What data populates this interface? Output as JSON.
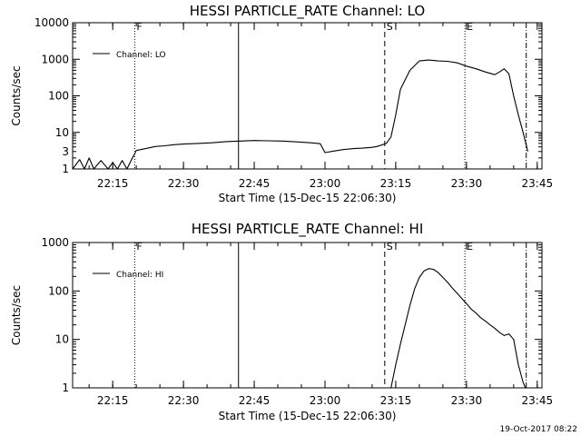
{
  "footer": {
    "date_stamp": "19-Oct-2017 08:22"
  },
  "chart_data": [
    {
      "type": "line",
      "title": "HESSI PARTICLE_RATE Channel: LO",
      "xlabel": "Start Time (15-Dec-15 22:06:30)",
      "ylabel": "Counts/sec",
      "yscale": "log",
      "ylim": [
        1,
        10000
      ],
      "xlim": [
        "22:06:30",
        "23:46:00"
      ],
      "xticks": [
        "22:15",
        "22:30",
        "22:45",
        "23:00",
        "23:15",
        "23:30",
        "23:45"
      ],
      "yticks": [
        "1",
        "10",
        "100",
        "1000",
        "10000"
      ],
      "y_minor_ticks": [
        3,
        30,
        300,
        3000
      ],
      "y_minor_labels": [
        "3",
        "",
        "",
        ""
      ],
      "legend": {
        "position": "top-left",
        "label": "Channel: LO"
      },
      "event_markers": [
        {
          "label": "F",
          "time": "22:19:40",
          "style": "dotted"
        },
        {
          "label": "",
          "time": "22:41:40",
          "style": "solid"
        },
        {
          "label": "S",
          "time": "23:12:40",
          "style": "dashed"
        },
        {
          "label": "E",
          "time": "23:29:40",
          "style": "dotted"
        },
        {
          "label": "",
          "time": "23:42:40",
          "style": "dashdot"
        }
      ],
      "series": [
        {
          "x": [
            "22:06:30",
            "22:08:00",
            "22:09:00",
            "22:10:00",
            "22:11:00",
            "22:12:30",
            "22:14:00",
            "22:15:00",
            "22:16:00",
            "22:17:00",
            "22:18:00",
            "22:19:00",
            "22:19:40",
            "22:20:00",
            "22:22:00",
            "22:24:00",
            "22:26:00",
            "22:28:00",
            "22:30:00",
            "22:33:00",
            "22:36:00",
            "22:39:00",
            "22:42:00",
            "22:45:00",
            "22:48:00",
            "22:51:00",
            "22:54:00",
            "22:57:00",
            "22:59:00",
            "23:00:00",
            "23:02:00",
            "23:04:00",
            "23:06:00",
            "23:08:00",
            "23:10:00",
            "23:11:00",
            "23:12:00",
            "23:13:00",
            "23:14:00",
            "23:15:00",
            "23:16:00",
            "23:18:00",
            "23:20:00",
            "23:22:00",
            "23:24:00",
            "23:26:00",
            "23:28:00",
            "23:30:00",
            "23:32:00",
            "23:34:00",
            "23:36:00",
            "23:37:00",
            "23:38:00",
            "23:39:00",
            "23:40:00",
            "23:41:00",
            "23:42:00",
            "23:43:00"
          ],
          "y": [
            1,
            1.8,
            1,
            2,
            1,
            1.7,
            1,
            1.5,
            1,
            1.7,
            1,
            1.8,
            2.6,
            3.2,
            3.6,
            4.1,
            4.3,
            4.6,
            4.8,
            5.0,
            5.2,
            5.6,
            5.8,
            6.0,
            5.9,
            5.8,
            5.5,
            5.2,
            4.9,
            2.8,
            3.1,
            3.4,
            3.6,
            3.7,
            3.9,
            4.1,
            4.5,
            5.0,
            7.5,
            30,
            150,
            500,
            900,
            950,
            900,
            880,
            800,
            650,
            550,
            450,
            380,
            450,
            550,
            400,
            100,
            30,
            10,
            3
          ]
        }
      ]
    },
    {
      "type": "line",
      "title": "HESSI PARTICLE_RATE Channel: HI",
      "xlabel": "Start Time (15-Dec-15 22:06:30)",
      "ylabel": "Counts/sec",
      "yscale": "log",
      "ylim": [
        1,
        1000
      ],
      "xlim": [
        "22:06:30",
        "23:46:00"
      ],
      "xticks": [
        "22:15",
        "22:30",
        "22:45",
        "23:00",
        "23:15",
        "23:30",
        "23:45"
      ],
      "yticks": [
        "1",
        "10",
        "100",
        "1000"
      ],
      "legend": {
        "position": "top-left",
        "label": "Channel: HI"
      },
      "event_markers": [
        {
          "label": "F",
          "time": "22:19:40",
          "style": "dotted"
        },
        {
          "label": "",
          "time": "22:41:40",
          "style": "solid"
        },
        {
          "label": "S",
          "time": "23:12:40",
          "style": "dashed"
        },
        {
          "label": "E",
          "time": "23:29:40",
          "style": "dotted"
        },
        {
          "label": "",
          "time": "23:42:40",
          "style": "dashdot"
        }
      ],
      "series": [
        {
          "x": [
            "23:14:00",
            "23:15:00",
            "23:16:00",
            "23:17:00",
            "23:18:00",
            "23:19:00",
            "23:20:00",
            "23:21:00",
            "23:22:00",
            "23:23:00",
            "23:24:00",
            "23:25:00",
            "23:26:00",
            "23:27:00",
            "23:28:00",
            "23:29:00",
            "23:30:00",
            "23:31:00",
            "23:32:00",
            "23:33:00",
            "23:34:00",
            "23:35:00",
            "23:36:00",
            "23:37:00",
            "23:38:00",
            "23:39:00",
            "23:40:00",
            "23:41:00",
            "23:42:00",
            "23:42:30"
          ],
          "y": [
            1,
            3,
            8,
            20,
            50,
            110,
            190,
            260,
            290,
            280,
            240,
            190,
            150,
            115,
            90,
            70,
            55,
            42,
            35,
            28,
            24,
            20,
            17,
            14,
            12,
            13,
            10,
            3,
            1.3,
            1
          ]
        }
      ]
    }
  ]
}
